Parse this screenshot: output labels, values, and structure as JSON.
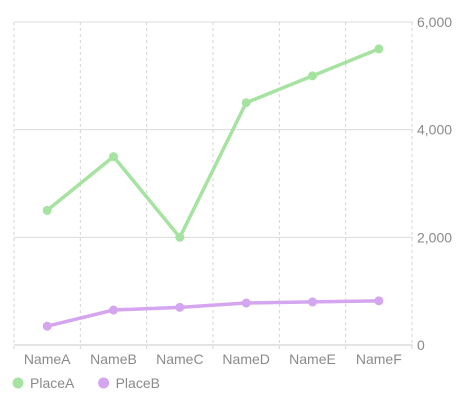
{
  "chart_data": {
    "type": "line",
    "categories": [
      "NameA",
      "NameB",
      "NameC",
      "NameD",
      "NameE",
      "NameF"
    ],
    "series": [
      {
        "name": "PlaceA",
        "color": "#a6e3a1",
        "values": [
          2500,
          3500,
          2000,
          4500,
          5000,
          5500
        ]
      },
      {
        "name": "PlaceB",
        "color": "#d4a6f0",
        "values": [
          350,
          650,
          700,
          780,
          800,
          820
        ]
      }
    ],
    "y_ticks": [
      "0",
      "2,000",
      "4,000",
      "6,000"
    ],
    "ylim": [
      0,
      6000
    ],
    "y_axis_side": "right",
    "grid": true,
    "legend_position": "bottom-left"
  }
}
